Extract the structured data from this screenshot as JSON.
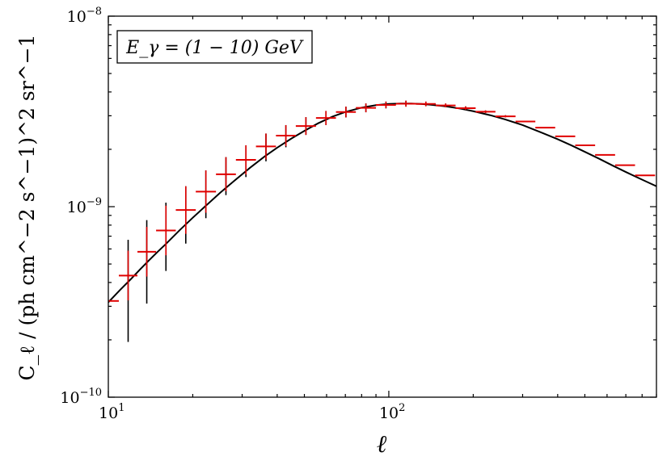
{
  "chart_data": {
    "type": "scatter",
    "annotation": "E_γ = (1 − 10) GeV",
    "xlabel": "ℓ",
    "ylabel": "C_ℓ / (ph cm^−2 s^−1)^2 sr^−1",
    "x_scale": "log",
    "y_scale": "log",
    "xlim": [
      10,
      900
    ],
    "ylim": [
      1e-10,
      1e-08
    ],
    "x_ticks": [
      {
        "value": 10,
        "base": "10",
        "exp": "1"
      },
      {
        "value": 100,
        "base": "10",
        "exp": "2"
      }
    ],
    "y_ticks": [
      {
        "value": 1e-10,
        "base": "10",
        "exp": "−10"
      },
      {
        "value": 1e-09,
        "base": "10",
        "exp": "−9"
      },
      {
        "value": 1e-08,
        "base": "10",
        "exp": "−8"
      }
    ],
    "grid": false,
    "series": [
      {
        "kind": "binned-errorbars",
        "color": "#e00000",
        "error_color": "#000000",
        "points": [
          {
            "x_lo": 10.0,
            "x_hi": 10.9,
            "y": 3.2e-10,
            "y_lo": 3.2e-10,
            "y_hi": 3.2e-10
          },
          {
            "x_lo": 10.9,
            "x_hi": 12.7,
            "y": 4.35e-10,
            "y_lo": 1.95e-10,
            "y_hi": 6.7e-10
          },
          {
            "x_lo": 12.7,
            "x_hi": 14.8,
            "y": 5.8e-10,
            "y_lo": 3.1e-10,
            "y_hi": 8.5e-10
          },
          {
            "x_lo": 14.8,
            "x_hi": 17.4,
            "y": 7.5e-10,
            "y_lo": 4.6e-10,
            "y_hi": 1.05e-09
          },
          {
            "x_lo": 17.4,
            "x_hi": 20.5,
            "y": 9.6e-10,
            "y_lo": 6.4e-10,
            "y_hi": 1.28e-09
          },
          {
            "x_lo": 20.5,
            "x_hi": 24.2,
            "y": 1.2e-09,
            "y_lo": 8.7e-10,
            "y_hi": 1.55e-09
          },
          {
            "x_lo": 24.2,
            "x_hi": 28.5,
            "y": 1.48e-09,
            "y_lo": 1.15e-09,
            "y_hi": 1.82e-09
          },
          {
            "x_lo": 28.5,
            "x_hi": 33.6,
            "y": 1.76e-09,
            "y_lo": 1.43e-09,
            "y_hi": 2.1e-09
          },
          {
            "x_lo": 33.6,
            "x_hi": 39.6,
            "y": 2.07e-09,
            "y_lo": 1.73e-09,
            "y_hi": 2.42e-09
          },
          {
            "x_lo": 39.6,
            "x_hi": 46.6,
            "y": 2.36e-09,
            "y_lo": 2.05e-09,
            "y_hi": 2.68e-09
          },
          {
            "x_lo": 46.6,
            "x_hi": 55.0,
            "y": 2.65e-09,
            "y_lo": 2.38e-09,
            "y_hi": 2.95e-09
          },
          {
            "x_lo": 55.0,
            "x_hi": 64.8,
            "y": 2.92e-09,
            "y_lo": 2.68e-09,
            "y_hi": 3.18e-09
          },
          {
            "x_lo": 64.8,
            "x_hi": 76.3,
            "y": 3.14e-09,
            "y_lo": 2.94e-09,
            "y_hi": 3.35e-09
          },
          {
            "x_lo": 76.3,
            "x_hi": 90.0,
            "y": 3.3e-09,
            "y_lo": 3.13e-09,
            "y_hi": 3.48e-09
          },
          {
            "x_lo": 90.0,
            "x_hi": 106.0,
            "y": 3.42e-09,
            "y_lo": 3.28e-09,
            "y_hi": 3.56e-09
          },
          {
            "x_lo": 106.0,
            "x_hi": 125.0,
            "y": 3.47e-09,
            "y_lo": 3.36e-09,
            "y_hi": 3.6e-09
          },
          {
            "x_lo": 125.0,
            "x_hi": 147.0,
            "y": 3.46e-09,
            "y_lo": 3.38e-09,
            "y_hi": 3.56e-09
          },
          {
            "x_lo": 147.0,
            "x_hi": 173.0,
            "y": 3.4e-09,
            "y_lo": 3.33e-09,
            "y_hi": 3.48e-09
          },
          {
            "x_lo": 173.0,
            "x_hi": 204.0,
            "y": 3.29e-09,
            "y_lo": 3.23e-09,
            "y_hi": 3.36e-09
          },
          {
            "x_lo": 204.0,
            "x_hi": 240.0,
            "y": 3.15e-09,
            "y_lo": 3.1e-09,
            "y_hi": 3.2e-09
          },
          {
            "x_lo": 240.0,
            "x_hi": 283.0,
            "y": 2.98e-09,
            "y_lo": 2.94e-09,
            "y_hi": 3.02e-09
          },
          {
            "x_lo": 283.0,
            "x_hi": 333.0,
            "y": 2.8e-09,
            "y_lo": 2.8e-09,
            "y_hi": 2.8e-09
          },
          {
            "x_lo": 333.0,
            "x_hi": 392.0,
            "y": 2.6e-09,
            "y_lo": 2.6e-09,
            "y_hi": 2.6e-09
          },
          {
            "x_lo": 392.0,
            "x_hi": 462.0,
            "y": 2.34e-09,
            "y_lo": 2.34e-09,
            "y_hi": 2.34e-09
          },
          {
            "x_lo": 462.0,
            "x_hi": 544.0,
            "y": 2.1e-09,
            "y_lo": 2.1e-09,
            "y_hi": 2.1e-09
          },
          {
            "x_lo": 544.0,
            "x_hi": 641.0,
            "y": 1.87e-09,
            "y_lo": 1.87e-09,
            "y_hi": 1.87e-09
          },
          {
            "x_lo": 641.0,
            "x_hi": 755.0,
            "y": 1.65e-09,
            "y_lo": 1.65e-09,
            "y_hi": 1.65e-09
          },
          {
            "x_lo": 755.0,
            "x_hi": 890.0,
            "y": 1.46e-09,
            "y_lo": 1.46e-09,
            "y_hi": 1.46e-09
          }
        ]
      },
      {
        "kind": "curve",
        "color": "#000000",
        "x": [
          10,
          11,
          12,
          13,
          14,
          15,
          16,
          18,
          20,
          22,
          25,
          28,
          32,
          36,
          40,
          45,
          50,
          56,
          63,
          70,
          80,
          90,
          100,
          110,
          120,
          130,
          140,
          160,
          180,
          200,
          230,
          260,
          300,
          350,
          400,
          450,
          500,
          560,
          630,
          700,
          780,
          850,
          900
        ],
        "y": [
          3.15e-10,
          3.65e-10,
          4.15e-10,
          4.7e-10,
          5.25e-10,
          5.8e-10,
          6.35e-10,
          7.55e-10,
          8.75e-10,
          9.95e-10,
          1.18e-09,
          1.36e-09,
          1.6e-09,
          1.83e-09,
          2.04e-09,
          2.28e-09,
          2.5e-09,
          2.74e-09,
          2.97e-09,
          3.14e-09,
          3.31e-09,
          3.41e-09,
          3.46e-09,
          3.48e-09,
          3.48e-09,
          3.46e-09,
          3.43e-09,
          3.36e-09,
          3.27e-09,
          3.17e-09,
          3.02e-09,
          2.87e-09,
          2.68e-09,
          2.45e-09,
          2.26e-09,
          2.09e-09,
          1.94e-09,
          1.79e-09,
          1.64e-09,
          1.52e-09,
          1.41e-09,
          1.33e-09,
          1.28e-09
        ]
      }
    ]
  }
}
